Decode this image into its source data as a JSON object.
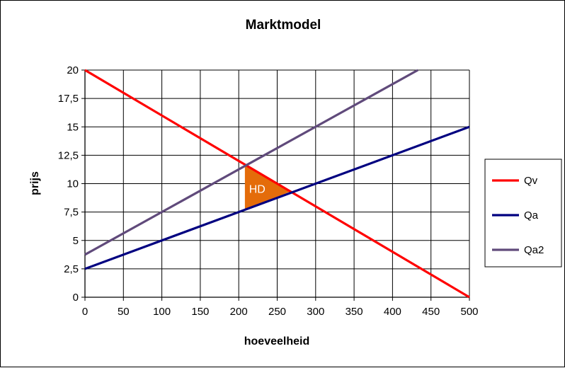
{
  "chart_data": {
    "type": "line",
    "title": "Marktmodel",
    "xlabel": "hoeveelheid",
    "ylabel": "prijs",
    "xlim": [
      0,
      500
    ],
    "ylim": [
      0,
      20
    ],
    "x_ticks": [
      "0",
      "50",
      "100",
      "150",
      "200",
      "250",
      "300",
      "350",
      "400",
      "450",
      "500"
    ],
    "y_ticks": [
      "0",
      "2,5",
      "5",
      "7,5",
      "10",
      "12,5",
      "15",
      "17,5",
      "20"
    ],
    "grid": true,
    "legend": "right",
    "series": [
      {
        "name": "Qv",
        "color": "#ff0000",
        "x": [
          0,
          500
        ],
        "y": [
          20,
          0
        ]
      },
      {
        "name": "Qa",
        "color": "#000080",
        "x": [
          0,
          500
        ],
        "y": [
          2.5,
          15
        ]
      },
      {
        "name": "Qa2",
        "color": "#604a7b",
        "x": [
          0,
          433
        ],
        "y": [
          3.75,
          20
        ]
      }
    ],
    "annotations": [
      {
        "text": "HD",
        "color": "#e46c0a",
        "polygon": [
          [
            208,
            11.68
          ],
          [
            208,
            7.7
          ],
          [
            267,
            9.3
          ]
        ]
      }
    ]
  }
}
